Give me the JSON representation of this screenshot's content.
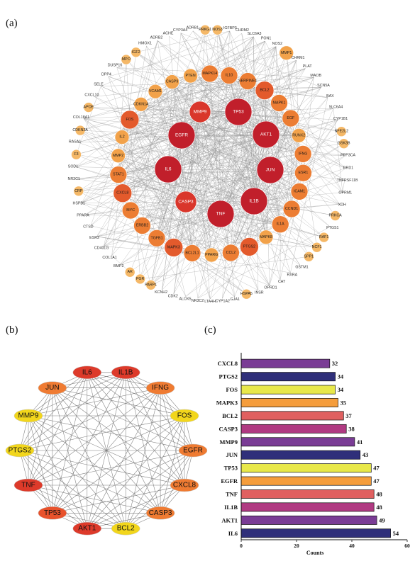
{
  "panels": {
    "a": "(a)",
    "b": "(b)",
    "c": "(c)"
  },
  "colors": {
    "dark_red": "#c0202c",
    "red": "#dd3a2a",
    "red_orange": "#e8522c",
    "orange": "#ef7b32",
    "light_orange": "#f4a04a",
    "pale_orange": "#f6c57a",
    "yellow": "#f2d61c",
    "edge": "#9a9a9a"
  },
  "network_a": {
    "inner": [
      {
        "label": "TP53",
        "level": 0
      },
      {
        "label": "AKT1",
        "level": 0
      },
      {
        "label": "JUN",
        "level": 0
      },
      {
        "label": "IL1B",
        "level": 0
      },
      {
        "label": "TNF",
        "level": 0
      },
      {
        "label": "CASP3",
        "level": 1
      },
      {
        "label": "IL6",
        "level": 0
      },
      {
        "label": "EGFR",
        "level": 0
      },
      {
        "label": "MMP9",
        "level": 1
      }
    ],
    "middle": [
      {
        "label": "IL10",
        "level": 3
      },
      {
        "label": "SERPINE1",
        "level": 3
      },
      {
        "label": "BCL2",
        "level": 2
      },
      {
        "label": "MAPK1",
        "level": 3
      },
      {
        "label": "EGF",
        "level": 3
      },
      {
        "label": "RUNX2",
        "level": 4
      },
      {
        "label": "IFNG",
        "level": 3
      },
      {
        "label": "ESR1",
        "level": 3
      },
      {
        "label": "ICAM1",
        "level": 3
      },
      {
        "label": "CCND1",
        "level": 3
      },
      {
        "label": "IL1A",
        "level": 3
      },
      {
        "label": "MAPK8",
        "level": 4
      },
      {
        "label": "PTGS2",
        "level": 2
      },
      {
        "label": "CCL2",
        "level": 3
      },
      {
        "label": "PPARG",
        "level": 4
      },
      {
        "label": "BCL2L1",
        "level": 3
      },
      {
        "label": "MAPK3",
        "level": 2
      },
      {
        "label": "TGFB1",
        "level": 3
      },
      {
        "label": "ERBB2",
        "level": 3
      },
      {
        "label": "MYC",
        "level": 3
      },
      {
        "label": "CXCL8",
        "level": 2
      },
      {
        "label": "STAT1",
        "level": 3
      },
      {
        "label": "MMP2",
        "level": 4
      },
      {
        "label": "IL2",
        "level": 4
      },
      {
        "label": "FOS",
        "level": 2
      },
      {
        "label": "CDKN1A",
        "level": 4
      },
      {
        "label": "VCAM1",
        "level": 4
      },
      {
        "label": "CASP9",
        "level": 4
      },
      {
        "label": "PTEN",
        "level": 4
      },
      {
        "label": "MAPK14",
        "level": 3
      }
    ],
    "outer": [
      {
        "label": "NOS3",
        "level": 5
      },
      {
        "label": "IGFBP3",
        "level": 6
      },
      {
        "label": "CHRM2",
        "level": 6
      },
      {
        "label": "SLC6A3",
        "level": 6
      },
      {
        "label": "PON1",
        "level": 6
      },
      {
        "label": "NOS2",
        "level": 6
      },
      {
        "label": "MMP1",
        "level": 4
      },
      {
        "label": "CHRM1",
        "level": 6
      },
      {
        "label": "PLAT",
        "level": 6
      },
      {
        "label": "MAOB",
        "level": 6
      },
      {
        "label": "SCN5A",
        "level": 6
      },
      {
        "label": "BAX",
        "level": 6
      },
      {
        "label": "SLC6A4",
        "level": 6
      },
      {
        "label": "CYP1B1",
        "level": 6
      },
      {
        "label": "NFE2L2",
        "level": 5
      },
      {
        "label": "GSK3B",
        "level": 5
      },
      {
        "label": "PPP3CA",
        "level": 6
      },
      {
        "label": "DRD1",
        "level": 6
      },
      {
        "label": "TNFRSF11B",
        "level": 6
      },
      {
        "label": "OPRM1",
        "level": 6
      },
      {
        "label": "XDH",
        "level": 6
      },
      {
        "label": "PRKCA",
        "level": 5
      },
      {
        "label": "PTGS1",
        "level": 6
      },
      {
        "label": "RAF1",
        "level": 5
      },
      {
        "label": "NCF1",
        "level": 5
      },
      {
        "label": "SPP1",
        "level": 5
      },
      {
        "label": "GSTM1",
        "level": 6
      },
      {
        "label": "RXRA",
        "level": 6
      },
      {
        "label": "CAT",
        "level": 6
      },
      {
        "label": "OPRD1",
        "level": 6
      },
      {
        "label": "INSR",
        "level": 6
      },
      {
        "label": "HSPA5",
        "level": 5
      },
      {
        "label": "GJA1",
        "level": 6
      },
      {
        "label": "CYP1A2",
        "level": 6
      },
      {
        "label": "LTA4H",
        "level": 6
      },
      {
        "label": "NR3C2",
        "level": 6
      },
      {
        "label": "ALOX5",
        "level": 6
      },
      {
        "label": "CDK2",
        "level": 6
      },
      {
        "label": "KCNH2",
        "level": 6
      },
      {
        "label": "PARP1",
        "level": 5
      },
      {
        "label": "PGR",
        "level": 5
      },
      {
        "label": "AR",
        "level": 5
      },
      {
        "label": "BMP2",
        "level": 6
      },
      {
        "label": "COL1A1",
        "level": 6
      },
      {
        "label": "CD40LG",
        "level": 6
      },
      {
        "label": "ESR2",
        "level": 6
      },
      {
        "label": "CTSD",
        "level": 6
      },
      {
        "label": "PPARA",
        "level": 6
      },
      {
        "label": "HSPB1",
        "level": 6
      },
      {
        "label": "CRP",
        "level": 5
      },
      {
        "label": "NR3C1",
        "level": 6
      },
      {
        "label": "SOD1",
        "level": 6
      },
      {
        "label": "F3",
        "level": 5
      },
      {
        "label": "RASA1",
        "level": 6
      },
      {
        "label": "CDKN2A",
        "level": 5
      },
      {
        "label": "COL18A1",
        "level": 6
      },
      {
        "label": "APOE",
        "level": 5
      },
      {
        "label": "CXCL10",
        "level": 6
      },
      {
        "label": "SELE",
        "level": 6
      },
      {
        "label": "DPP4",
        "level": 6
      },
      {
        "label": "DUSP16",
        "level": 6
      },
      {
        "label": "MPO",
        "level": 5
      },
      {
        "label": "IGF2",
        "level": 5
      },
      {
        "label": "HMOX1",
        "level": 6
      },
      {
        "label": "ADRB2",
        "level": 6
      },
      {
        "label": "ACHE",
        "level": 6
      },
      {
        "label": "CYP3A4",
        "level": 6
      },
      {
        "label": "ADRB1",
        "level": 6
      },
      {
        "label": "PRKG1",
        "level": 5
      }
    ]
  },
  "network_b": {
    "nodes": [
      {
        "label": "IL1B",
        "color": "red"
      },
      {
        "label": "IFNG",
        "color": "orange"
      },
      {
        "label": "FOS",
        "color": "yellow"
      },
      {
        "label": "EGFR",
        "color": "orange"
      },
      {
        "label": "CXCL8",
        "color": "orange"
      },
      {
        "label": "CASP3",
        "color": "orange"
      },
      {
        "label": "BCL2",
        "color": "yellow"
      },
      {
        "label": "AKT1",
        "color": "red"
      },
      {
        "label": "TP53",
        "color": "red_orange"
      },
      {
        "label": "TNF",
        "color": "red"
      },
      {
        "label": "PTGS2",
        "color": "yellow"
      },
      {
        "label": "MMP9",
        "color": "yellow"
      },
      {
        "label": "JUN",
        "color": "orange"
      },
      {
        "label": "IL6",
        "color": "red"
      }
    ]
  },
  "chart_data": {
    "type": "bar",
    "orientation": "horizontal",
    "categories": [
      "CXCL8",
      "PTGS2",
      "FOS",
      "MAPK3",
      "BCL2",
      "CASP3",
      "MMP9",
      "JUN",
      "TP53",
      "EGFR",
      "TNF",
      "IL1B",
      "AKT1",
      "IL6"
    ],
    "values": [
      32,
      34,
      34,
      35,
      37,
      38,
      41,
      43,
      47,
      47,
      48,
      48,
      49,
      54
    ],
    "bar_colors": [
      "#7a3c95",
      "#2f2f7a",
      "#e8e84a",
      "#f59d3c",
      "#e06060",
      "#b03a82",
      "#7a3c95",
      "#2f2f7a",
      "#e8e84a",
      "#f59d3c",
      "#e06060",
      "#b03a82",
      "#7a3c95",
      "#2f2f7a"
    ],
    "xlabel": "Counts",
    "ylabel": "",
    "xlim": [
      0,
      60
    ],
    "xticks": [
      0,
      20,
      40,
      60
    ],
    "grid": false
  }
}
